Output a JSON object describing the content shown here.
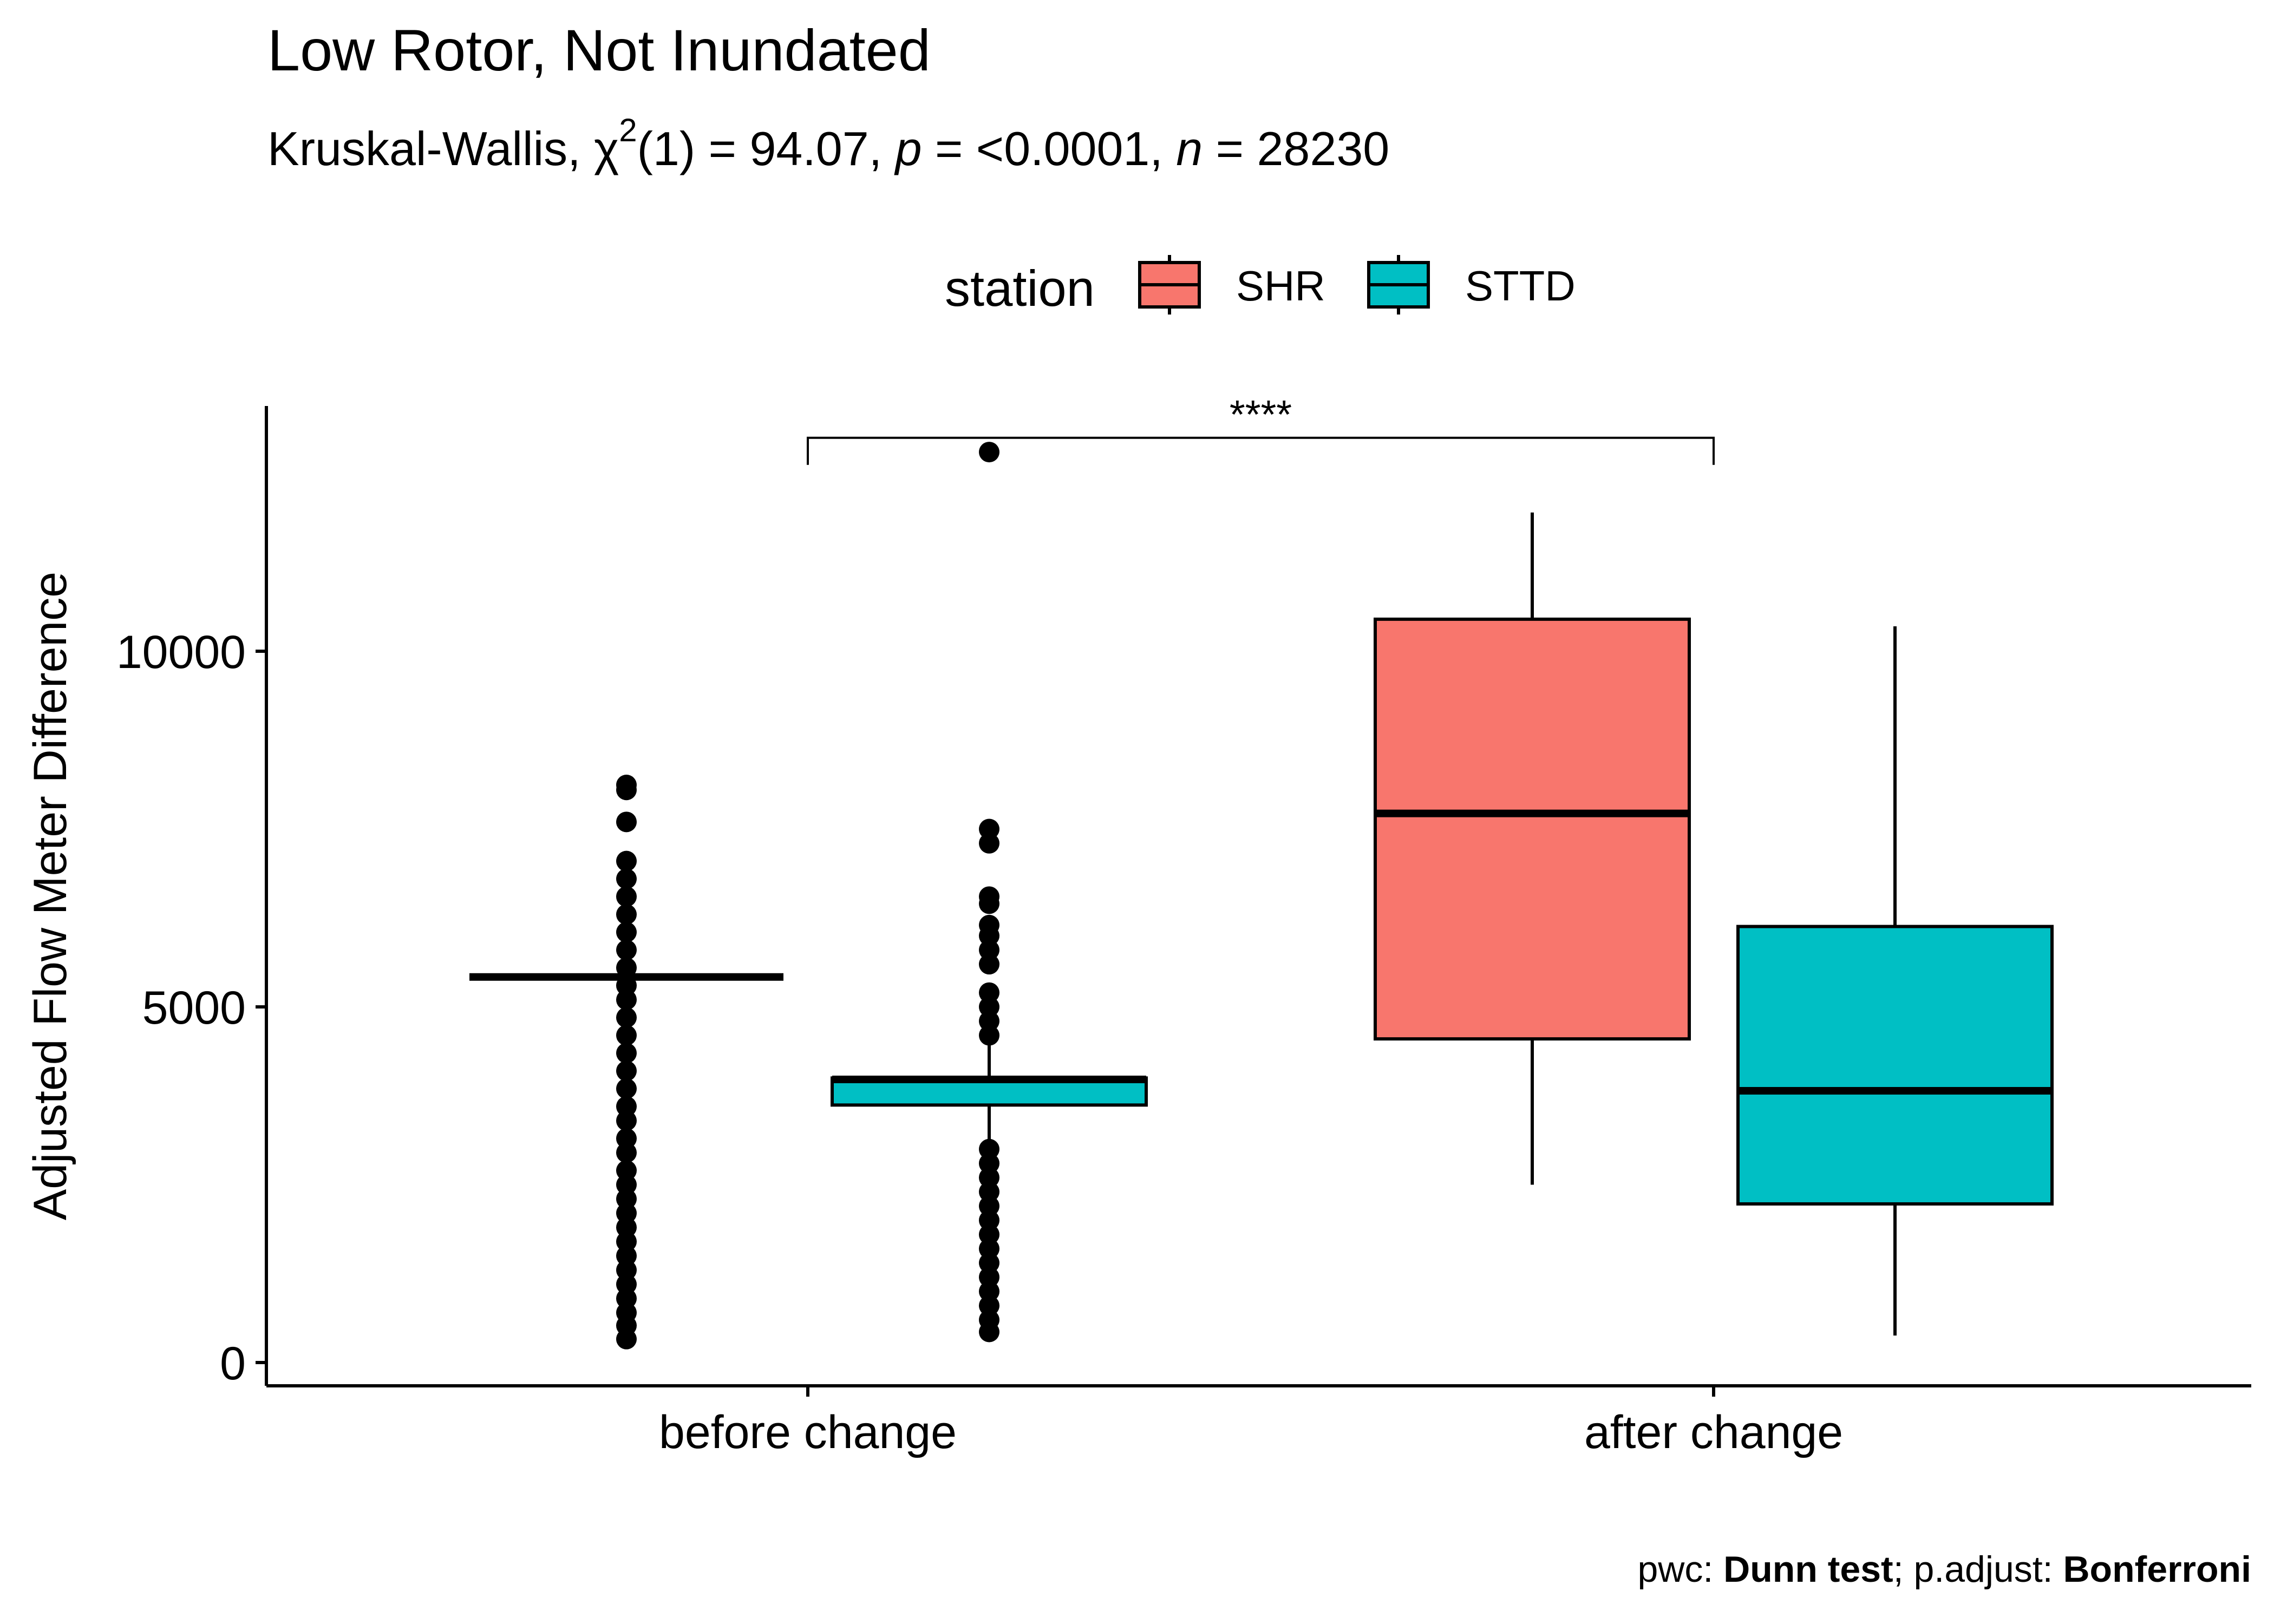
{
  "chart_data": {
    "type": "boxplot",
    "title": "Low Rotor, Not Inundated",
    "subtitle": {
      "prefix": "Kruskal-Wallis, ",
      "chi": "χ",
      "chi_sup": "2",
      "df_stat": "(1) = 94.07, ",
      "p_symbol": "p",
      "p_value": " = <0.0001, ",
      "n_symbol": "n",
      "n_value": " = 28230"
    },
    "ylabel": "Adjusted Flow Meter Difference",
    "xlabel": "",
    "ylim": [
      -300,
      13500
    ],
    "yticks": [
      {
        "value": 0,
        "label": "0"
      },
      {
        "value": 5000,
        "label": "5000"
      },
      {
        "value": 10000,
        "label": "10000"
      }
    ],
    "categories": [
      "before change",
      "after change"
    ],
    "legend": {
      "title": "station",
      "position": "top",
      "items": [
        {
          "name": "SHR",
          "color": "#F8766D"
        },
        {
          "name": "STTD",
          "color": "#00BFC4"
        }
      ]
    },
    "series": [
      {
        "name": "SHR",
        "color": "#F8766D",
        "boxes": [
          {
            "category": "before change",
            "min": 5420,
            "q1": 5420,
            "median": 5420,
            "q3": 5420,
            "max": 5420,
            "outliers": [
              330,
              520,
              700,
              900,
              1100,
              1300,
              1500,
              1700,
              1900,
              2100,
              2300,
              2500,
              2700,
              2950,
              3150,
              3400,
              3600,
              3850,
              4100,
              4350,
              4600,
              4850,
              5100,
              5300,
              5550,
              5800,
              6050,
              6300,
              6550,
              6800,
              7050,
              7600,
              8050,
              8120
            ]
          },
          {
            "category": "after change",
            "min": 2500,
            "q1": 4550,
            "median": 7720,
            "q3": 10450,
            "max": 11950,
            "outliers": []
          }
        ]
      },
      {
        "name": "STTD",
        "color": "#00BFC4",
        "boxes": [
          {
            "category": "before change",
            "min": 3100,
            "q1": 3620,
            "median": 3980,
            "q3": 4000,
            "max": 4500,
            "outliers": [
              430,
              600,
              800,
              1000,
              1200,
              1400,
              1600,
              1800,
              2000,
              2200,
              2400,
              2600,
              2800,
              3000,
              4600,
              4800,
              5000,
              5200,
              5600,
              5800,
              6000,
              6150,
              6450,
              6550,
              7300,
              7500,
              12800
            ]
          },
          {
            "category": "after change",
            "min": 380,
            "q1": 2230,
            "median": 3820,
            "q3": 6130,
            "max": 10350,
            "outliers": []
          }
        ]
      }
    ],
    "significance": [
      {
        "from": "before change",
        "to": "after change",
        "label": "****",
        "y": 13000
      }
    ],
    "caption": {
      "prefix": "pwc: ",
      "test": "Dunn test",
      "middle": "; p.adjust: ",
      "method": "Bonferroni"
    }
  }
}
